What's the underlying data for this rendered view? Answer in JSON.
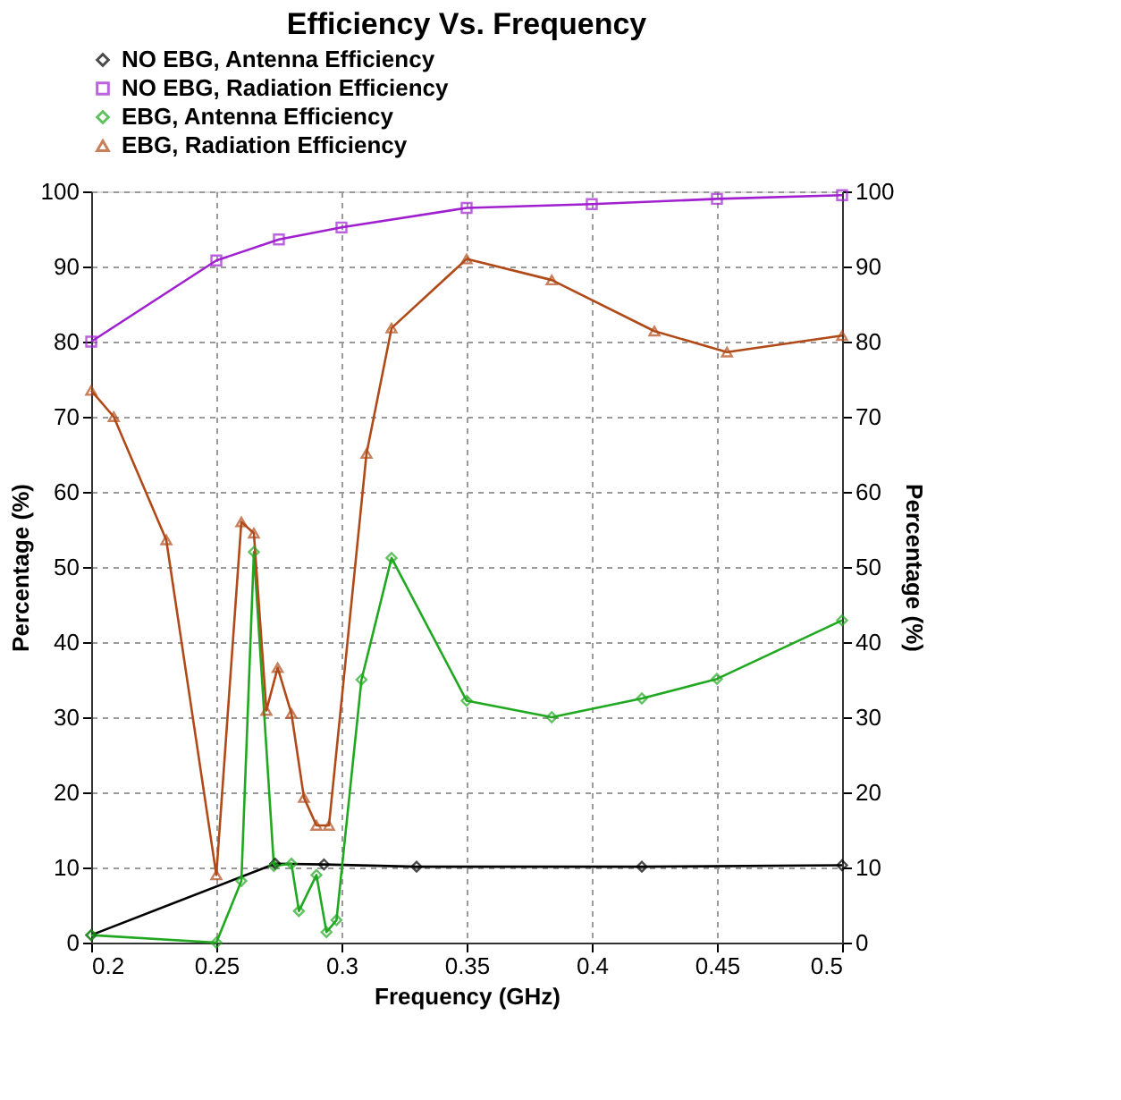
{
  "chart_data": {
    "type": "line",
    "title": "Efficiency Vs. Frequency",
    "xlabel": "Frequency (GHz)",
    "ylabel": "Percentage (%)",
    "y2label": "Percentage (%)",
    "xlim": [
      0.2,
      0.5
    ],
    "xticks": [
      0.2,
      0.25,
      0.3,
      0.35,
      0.4,
      0.45,
      0.5
    ],
    "ylim": [
      0,
      100
    ],
    "yticks": [
      0,
      10,
      20,
      30,
      40,
      50,
      60,
      70,
      80,
      90,
      100
    ],
    "y2lim": [
      0,
      100
    ],
    "y2ticks": [
      0,
      10,
      20,
      30,
      40,
      50,
      60,
      70,
      80,
      90,
      100
    ],
    "grid": true,
    "legend": "top left",
    "line_style": "solid",
    "series": [
      {
        "name": "NO EBG, Antenna Efficiency",
        "color": "#000000",
        "marker": "diamond",
        "x": [
          0.2,
          0.2735,
          0.293,
          0.33,
          0.42,
          0.5
        ],
        "values": [
          1,
          10.5,
          10.4,
          10.1,
          10.1,
          10.3
        ]
      },
      {
        "name": "NO EBG, Radiation Efficiency",
        "color": "#a020d0",
        "marker": "square",
        "x": [
          0.2,
          0.25,
          0.275,
          0.3,
          0.35,
          0.4,
          0.45,
          0.5
        ],
        "values": [
          80,
          90.8,
          93.6,
          95.2,
          97.8,
          98.3,
          99,
          99.5
        ]
      },
      {
        "name": "EBG, Antenna Efficiency",
        "color": "#20a820",
        "marker": "diamond",
        "x": [
          0.2,
          0.25,
          0.26,
          0.265,
          0.273,
          0.28,
          0.283,
          0.29,
          0.294,
          0.298,
          0.308,
          0.32,
          0.35,
          0.384,
          0.42,
          0.45,
          0.5
        ],
        "values": [
          1,
          0,
          8.2,
          52,
          10.2,
          10.5,
          4.2,
          9,
          1.4,
          3,
          35,
          51.2,
          32.2,
          30,
          32.5,
          35.1,
          42.9
        ]
      },
      {
        "name": "EBG, Radiation Efficiency",
        "color": "#b04a18",
        "marker": "triangle",
        "x": [
          0.2,
          0.209,
          0.23,
          0.25,
          0.26,
          0.265,
          0.27,
          0.2745,
          0.28,
          0.285,
          0.29,
          0.295,
          0.31,
          0.32,
          0.35,
          0.384,
          0.425,
          0.454,
          0.5
        ],
        "values": [
          73.5,
          70,
          53.6,
          9,
          56,
          54.5,
          30.9,
          36.6,
          30.5,
          19.3,
          15.6,
          15.6,
          65.1,
          81.8,
          91,
          88.2,
          81.4,
          78.6,
          80.8
        ]
      }
    ]
  }
}
